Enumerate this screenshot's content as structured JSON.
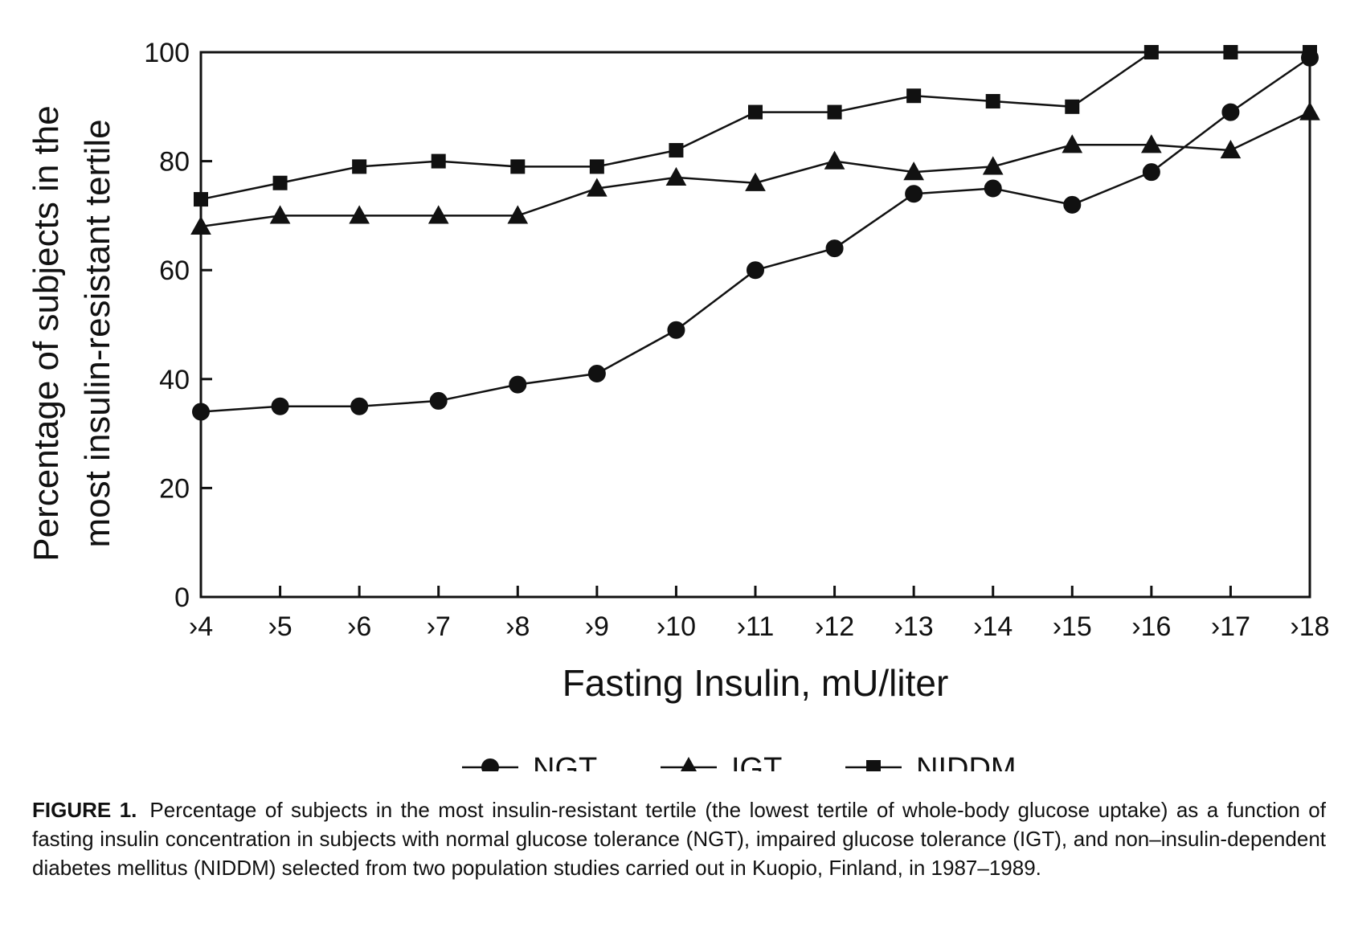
{
  "chart_data": {
    "type": "line",
    "title": "",
    "xlabel": "Fasting Insulin, mU/liter",
    "ylabel_line1": "Percentage of subjects in the",
    "ylabel_line2": "most insulin-resistant tertile",
    "categories": [
      "›4",
      "›5",
      "›6",
      "›7",
      "›8",
      "›9",
      "›10",
      "›11",
      "›12",
      "›13",
      "›14",
      "›15",
      "›16",
      "›17",
      "›18"
    ],
    "ylim": [
      0,
      100
    ],
    "yticks": [
      0,
      20,
      40,
      60,
      80,
      100
    ],
    "ytick_labels": [
      "0",
      "20",
      "40",
      "60",
      "80",
      "100"
    ],
    "grid": false,
    "legend_position": "bottom",
    "series": [
      {
        "name": "NGT",
        "marker": "circle",
        "values": [
          34,
          35,
          35,
          36,
          39,
          41,
          49,
          60,
          64,
          74,
          75,
          72,
          78,
          89,
          99
        ]
      },
      {
        "name": "IGT",
        "marker": "triangle",
        "values": [
          68,
          70,
          70,
          70,
          70,
          75,
          77,
          76,
          80,
          78,
          79,
          83,
          83,
          82,
          89
        ]
      },
      {
        "name": "NIDDM",
        "marker": "square",
        "values": [
          73,
          76,
          79,
          80,
          79,
          79,
          82,
          89,
          89,
          92,
          91,
          90,
          100,
          100,
          100
        ]
      }
    ]
  },
  "caption": {
    "label": "FIGURE 1.",
    "text": "Percentage of subjects in the most insulin-resistant tertile (the lowest tertile of whole-body glucose uptake) as a function of fasting insulin concentration in subjects with normal glucose tolerance (NGT), impaired glucose tolerance (IGT), and non–insulin-dependent diabetes mellitus (NIDDM) selected from two population studies carried out in Kuopio, Finland, in 1987–1989."
  }
}
